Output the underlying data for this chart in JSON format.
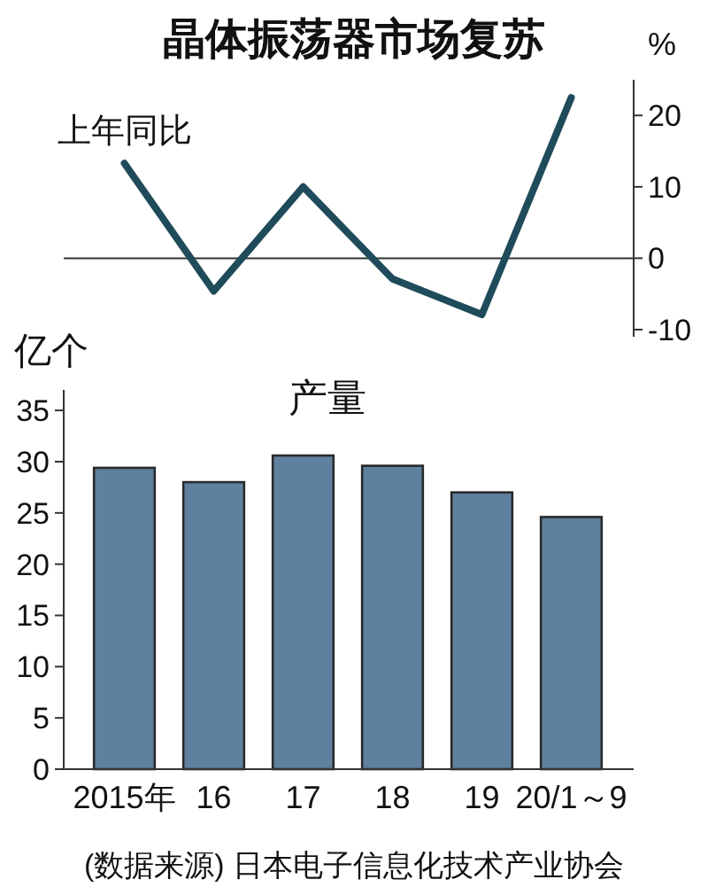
{
  "chart_data": [
    {
      "type": "line",
      "title": "晶体振荡器市场复苏",
      "ylabel": "%",
      "categories": [
        null,
        null,
        null,
        null,
        null,
        null
      ],
      "series": [
        {
          "name": "上年同比",
          "color": "#1f4b5a",
          "values": [
            13.3,
            -4.6,
            10,
            -2.9,
            -7.9,
            22.5
          ]
        }
      ],
      "ylim": [
        -11,
        25
      ],
      "yticks": [
        -10,
        0,
        10,
        20
      ],
      "tick_labels": "y"
    },
    {
      "type": "bar",
      "title": "产量",
      "ylabel": "亿个",
      "categories": [
        "2015年",
        "16",
        "17",
        "18",
        "19",
        "20/1～9"
      ],
      "values": [
        29.4,
        28.0,
        30.6,
        29.6,
        27.0,
        24.6
      ],
      "color": "#5f809e",
      "ylim": [
        0,
        37
      ],
      "yticks": [
        0,
        5,
        10,
        15,
        20,
        25,
        30,
        35
      ],
      "annotations": [
        "(数据来源) 日本电子信息化技术产业协会"
      ]
    }
  ]
}
